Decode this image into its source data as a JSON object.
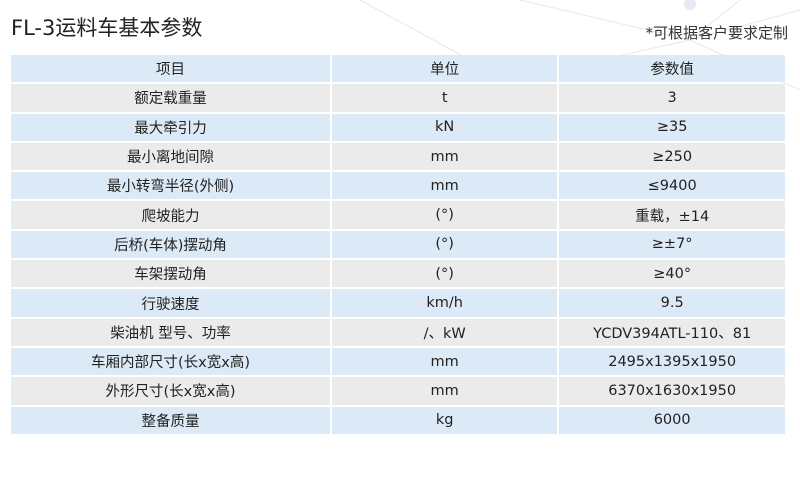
{
  "title": "FL-3运料车基本参数",
  "note": "*可根据客户要求定制",
  "table": {
    "headers": [
      "项目",
      "单位",
      "参数值"
    ],
    "rows": [
      [
        "额定载重量",
        "t",
        "3"
      ],
      [
        "最大牵引力",
        "kN",
        "≥35"
      ],
      [
        "最小离地间隙",
        "mm",
        "≥250"
      ],
      [
        "最小转弯半径(外侧)",
        "mm",
        "≤9400"
      ],
      [
        "爬坡能力",
        "(°)",
        "重载，±14"
      ],
      [
        "后桥(车体)摆动角",
        "(°)",
        "≥±7°"
      ],
      [
        "车架摆动角",
        "(°)",
        "≥40°"
      ],
      [
        "行驶速度",
        "km/h",
        "9.5"
      ],
      [
        "柴油机 型号、功率",
        "/、kW",
        "YCDV394ATL-110、81"
      ],
      [
        "车厢内部尺寸(长x宽x高)",
        "mm",
        "2495x1395x1950"
      ],
      [
        "外形尺寸(长x宽x高)",
        "mm",
        "6370x1630x1950"
      ],
      [
        "整备质量",
        "kg",
        "6000"
      ]
    ]
  },
  "colors": {
    "header_bg": "#dce9f6",
    "row_blue": "#dce9f6",
    "row_gray": "#ebebeb"
  }
}
